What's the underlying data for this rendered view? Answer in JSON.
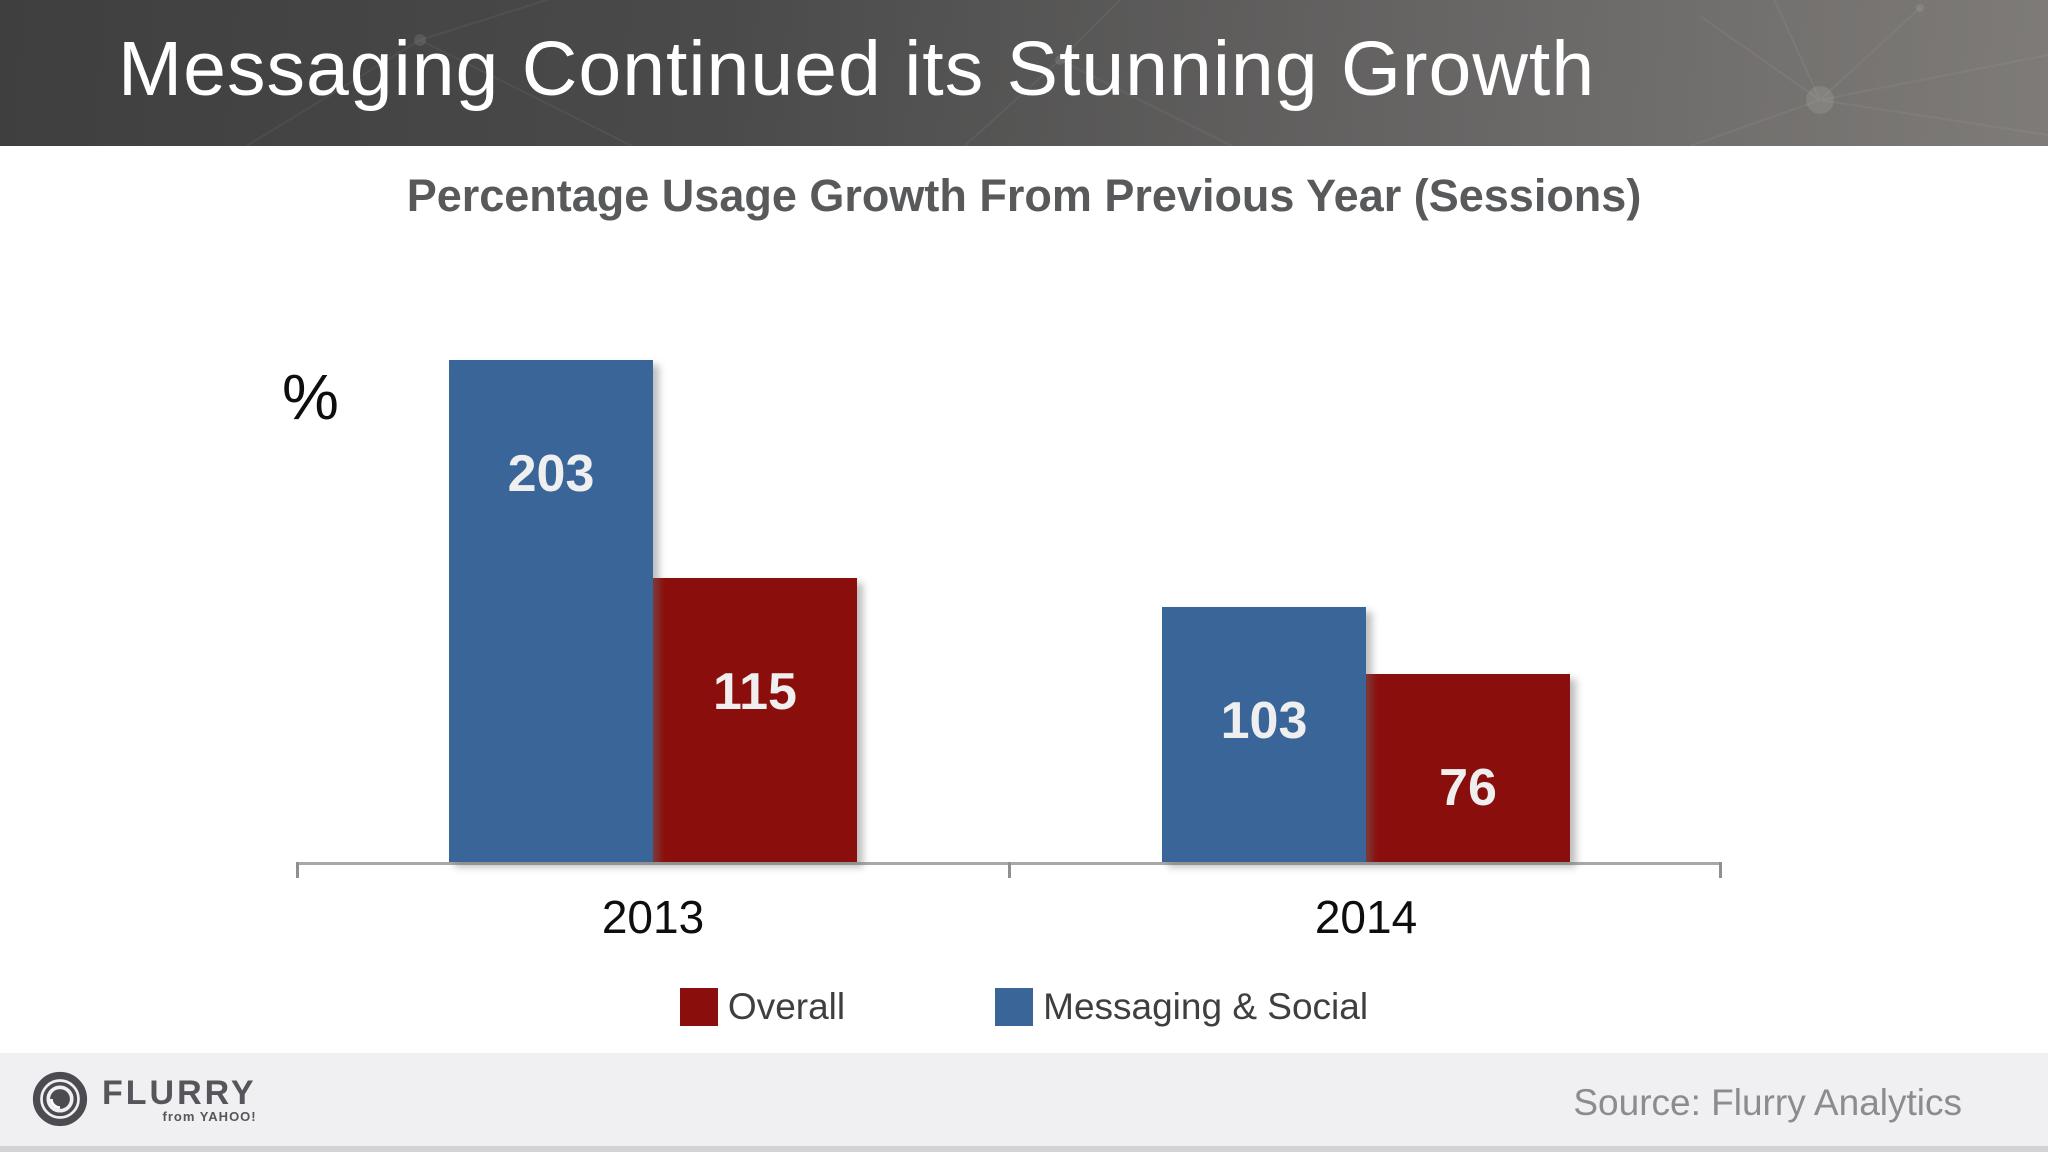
{
  "header": {
    "title": "Messaging Continued its Stunning Growth"
  },
  "chart": {
    "title": "Percentage Usage Growth From Previous Year (Sessions)",
    "y_axis_label": "%"
  },
  "legend": [
    {
      "label": "Overall",
      "color": "#8A0F0C"
    },
    {
      "label": "Messaging & Social",
      "color": "#3A6598"
    }
  ],
  "footer": {
    "logo_text": "FLURRY",
    "logo_sub": "from YAHOO!",
    "source": "Source: Flurry Analytics"
  },
  "chart_data": {
    "type": "bar",
    "categories": [
      "2013",
      "2014"
    ],
    "series": [
      {
        "name": "Messaging & Social",
        "color": "#3A6598",
        "values": [
          203,
          103
        ]
      },
      {
        "name": "Overall",
        "color": "#8A0F0C",
        "values": [
          115,
          76
        ]
      }
    ],
    "title": "Percentage Usage Growth From Previous Year (Sessions)",
    "xlabel": "",
    "ylabel": "%",
    "ylim": [
      0,
      207
    ],
    "grid": false,
    "bar_labels": true,
    "legend_position": "bottom"
  }
}
